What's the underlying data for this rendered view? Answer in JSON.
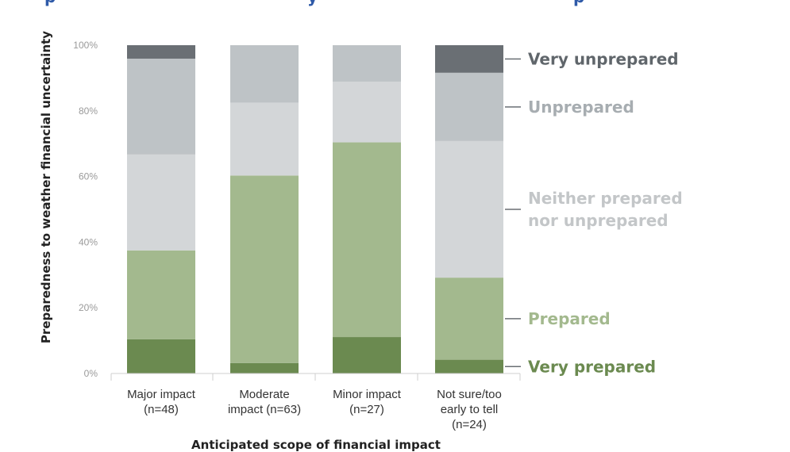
{
  "chart_data": {
    "type": "bar",
    "stacked": true,
    "xlabel": "Anticipated scope of financial impact",
    "ylabel": "Preparedness to weather financial uncertainty",
    "ylim": [
      0,
      100
    ],
    "yticks": [
      "0%",
      "20%",
      "40%",
      "60%",
      "80%",
      "100%"
    ],
    "categories": [
      [
        "Major impact",
        "(n=48)"
      ],
      [
        "Moderate",
        "impact (n=63)"
      ],
      [
        "Minor impact",
        "(n=27)"
      ],
      [
        "Not sure/too",
        "early to tell",
        "(n=24)"
      ]
    ],
    "series": [
      {
        "name": "Very prepared",
        "label_lines": [
          "Very prepared"
        ],
        "color": "#6b8a50",
        "label_color": "#6b8a50",
        "values": [
          10.4,
          3.2,
          11.1,
          4.2
        ]
      },
      {
        "name": "Prepared",
        "label_lines": [
          "Prepared"
        ],
        "color": "#a3b98e",
        "label_color": "#a3b98e",
        "values": [
          27.1,
          57.1,
          59.3,
          25.0
        ]
      },
      {
        "name": "Neither prepared nor unprepared",
        "label_lines": [
          "Neither prepared",
          "nor unprepared"
        ],
        "color": "#d3d6d8",
        "label_color": "#c3c6c8",
        "values": [
          29.2,
          22.2,
          18.5,
          41.6
        ]
      },
      {
        "name": "Unprepared",
        "label_lines": [
          "Unprepared"
        ],
        "color": "#bec3c6",
        "label_color": "#a7adb1",
        "values": [
          29.2,
          17.5,
          11.1,
          20.8
        ]
      },
      {
        "name": "Very unprepared",
        "label_lines": [
          "Very unprepared"
        ],
        "color": "#6a6f74",
        "label_color": "#60666b",
        "values": [
          4.1,
          0.0,
          0.0,
          8.4
        ]
      }
    ],
    "legend_placement": "right",
    "grid": false
  },
  "title_fragments": [
    {
      "text": "p",
      "color": "#2f5aa8"
    },
    {
      "text": "y",
      "color": "#2f5aa8"
    },
    {
      "text": "p",
      "color": "#2f5aa8"
    }
  ]
}
